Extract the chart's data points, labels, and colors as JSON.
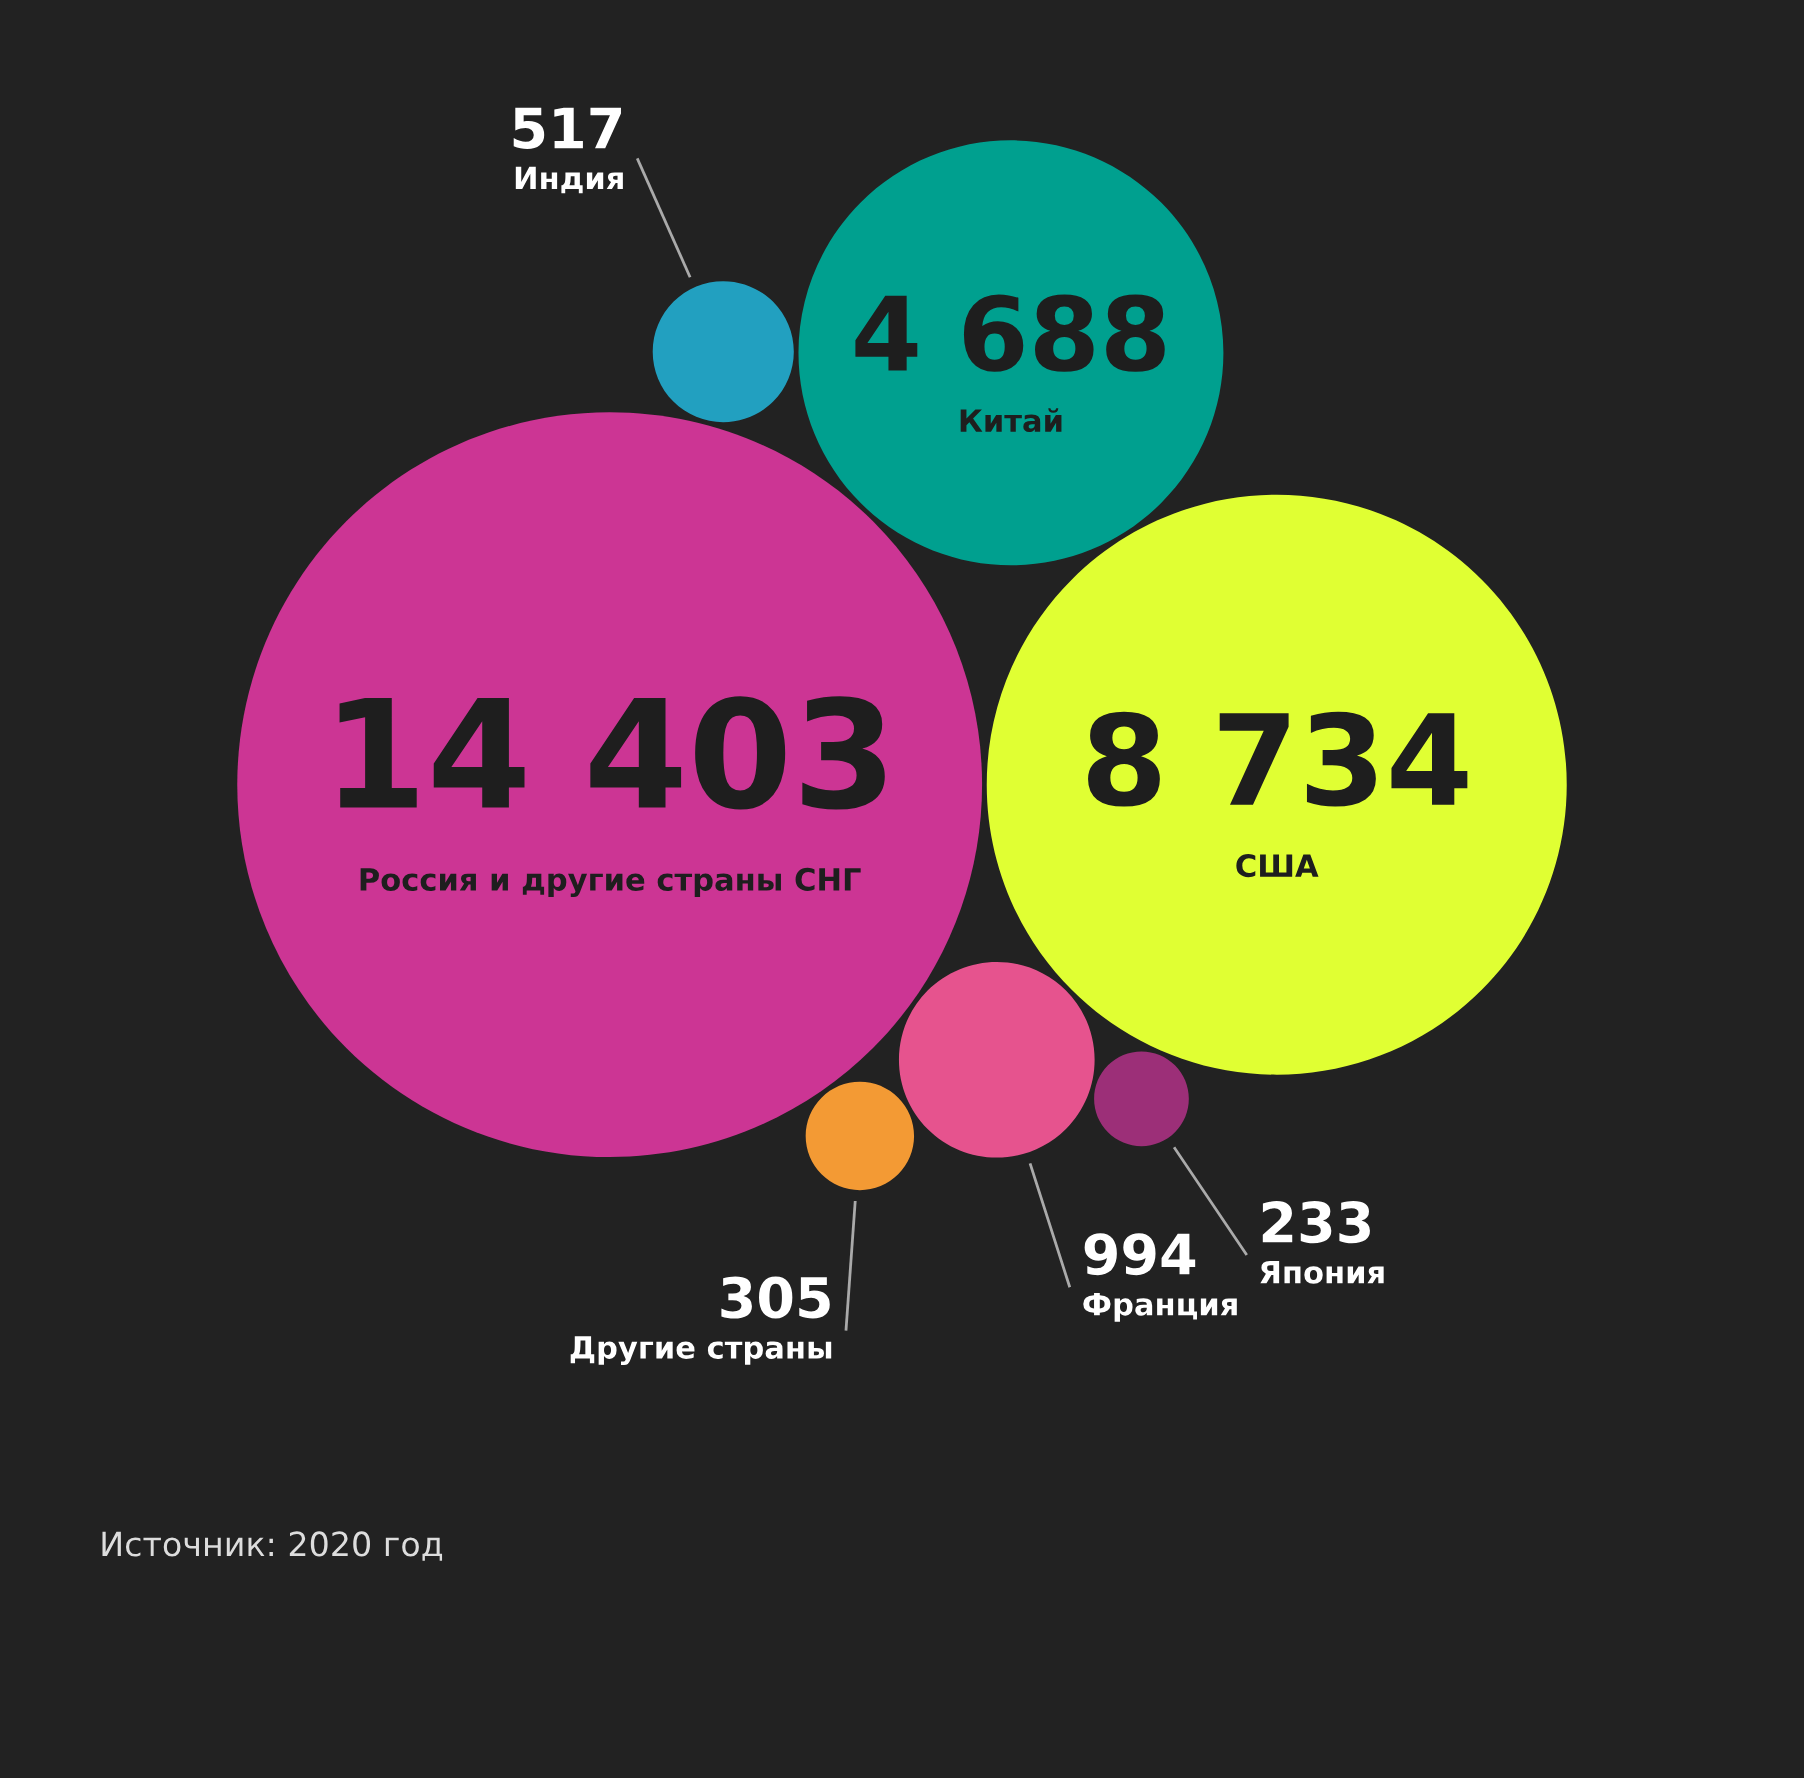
{
  "chart_data": {
    "type": "other",
    "categories": [
      "Россия и другие страны СНГ",
      "США",
      "Китай",
      "Франция",
      "Индия",
      "Другие страны",
      "Япония"
    ],
    "values": [
      14403,
      8734,
      4688,
      994,
      517,
      305,
      233
    ],
    "value_labels": [
      "14 403",
      "8 734",
      "4 688",
      "994",
      "517",
      "305",
      "233"
    ],
    "colors": [
      "#cc3594",
      "#e0ff33",
      "#00a08f",
      "#e6538e",
      "#22a0c0",
      "#f39a34",
      "#9c2f78"
    ],
    "annotations": [
      "Источник: 2020 год"
    ]
  }
}
